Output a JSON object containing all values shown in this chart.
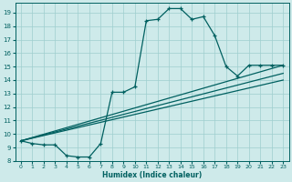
{
  "xlabel": "Humidex (Indice chaleur)",
  "bg_color": "#ceeaea",
  "grid_color": "#9ecece",
  "line_color": "#006060",
  "xlim": [
    -0.5,
    23.5
  ],
  "ylim": [
    8.0,
    19.7
  ],
  "xticks": [
    0,
    1,
    2,
    3,
    4,
    5,
    6,
    7,
    8,
    9,
    10,
    11,
    12,
    13,
    14,
    15,
    16,
    17,
    18,
    19,
    20,
    21,
    22,
    23
  ],
  "yticks": [
    8,
    9,
    10,
    11,
    12,
    13,
    14,
    15,
    16,
    17,
    18,
    19
  ],
  "curve1_x": [
    0,
    1,
    2,
    3,
    4,
    5,
    6,
    7,
    8,
    9,
    10,
    11,
    12,
    13,
    14,
    15,
    16,
    17,
    18,
    19,
    20,
    21,
    22,
    23
  ],
  "curve1_y": [
    9.5,
    9.3,
    9.2,
    9.2,
    8.4,
    8.3,
    8.3,
    9.3,
    13.1,
    13.1,
    13.5,
    18.4,
    18.5,
    19.3,
    19.3,
    18.5,
    18.7,
    17.3,
    15.0,
    14.3,
    15.1,
    15.1,
    15.1,
    15.1
  ],
  "line1_x": [
    0,
    23
  ],
  "line1_y": [
    9.5,
    15.1
  ],
  "line2_x": [
    0,
    23
  ],
  "line2_y": [
    9.5,
    14.5
  ],
  "line3_x": [
    0,
    23
  ],
  "line3_y": [
    9.5,
    14.0
  ]
}
